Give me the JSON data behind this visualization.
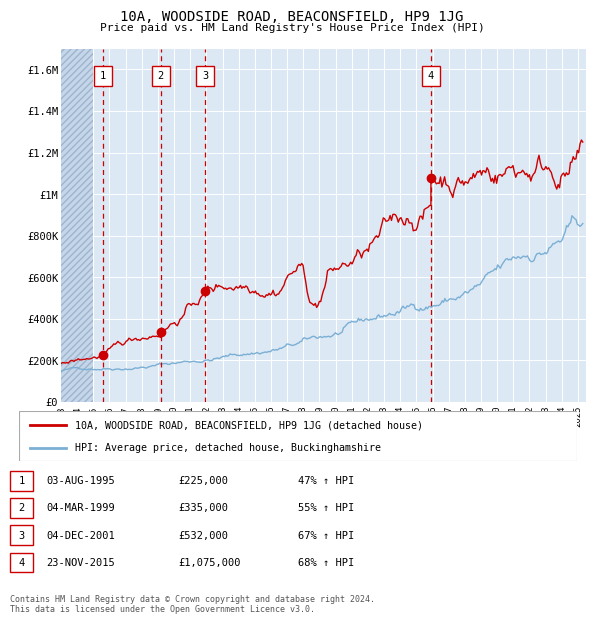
{
  "title": "10A, WOODSIDE ROAD, BEACONSFIELD, HP9 1JG",
  "subtitle": "Price paid vs. HM Land Registry's House Price Index (HPI)",
  "background_color": "#dce9f5",
  "grid_color": "#ffffff",
  "red_line_color": "#cc0000",
  "blue_line_color": "#7bafd4",
  "dashed_line_color": "#cc0000",
  "sale_points": [
    {
      "date_num": 1995.58,
      "price": 225000,
      "label": "1"
    },
    {
      "date_num": 1999.17,
      "price": 335000,
      "label": "2"
    },
    {
      "date_num": 2001.92,
      "price": 532000,
      "label": "3"
    },
    {
      "date_num": 2015.9,
      "price": 1075000,
      "label": "4"
    }
  ],
  "legend_entries": [
    {
      "color": "#cc0000",
      "label": "10A, WOODSIDE ROAD, BEACONSFIELD, HP9 1JG (detached house)"
    },
    {
      "color": "#7bafd4",
      "label": "HPI: Average price, detached house, Buckinghamshire"
    }
  ],
  "table_rows": [
    {
      "num": "1",
      "date": "03-AUG-1995",
      "price": "£225,000",
      "change": "47% ↑ HPI"
    },
    {
      "num": "2",
      "date": "04-MAR-1999",
      "price": "£335,000",
      "change": "55% ↑ HPI"
    },
    {
      "num": "3",
      "date": "04-DEC-2001",
      "price": "£532,000",
      "change": "67% ↑ HPI"
    },
    {
      "num": "4",
      "date": "23-NOV-2015",
      "price": "£1,075,000",
      "change": "68% ↑ HPI"
    }
  ],
  "footer": "Contains HM Land Registry data © Crown copyright and database right 2024.\nThis data is licensed under the Open Government Licence v3.0.",
  "ylim": [
    0,
    1700000
  ],
  "xlim_start": 1993.0,
  "xlim_end": 2025.5,
  "ytick_vals": [
    0,
    200000,
    400000,
    600000,
    800000,
    1000000,
    1200000,
    1400000,
    1600000
  ],
  "ytick_labels": [
    "£0",
    "£200K",
    "£400K",
    "£600K",
    "£800K",
    "£1M",
    "£1.2M",
    "£1.4M",
    "£1.6M"
  ],
  "xtick_years": [
    1993,
    1994,
    1995,
    1996,
    1997,
    1998,
    1999,
    2000,
    2001,
    2002,
    2003,
    2004,
    2005,
    2006,
    2007,
    2008,
    2009,
    2010,
    2011,
    2012,
    2013,
    2014,
    2015,
    2016,
    2017,
    2018,
    2019,
    2020,
    2021,
    2022,
    2023,
    2024,
    2025
  ]
}
